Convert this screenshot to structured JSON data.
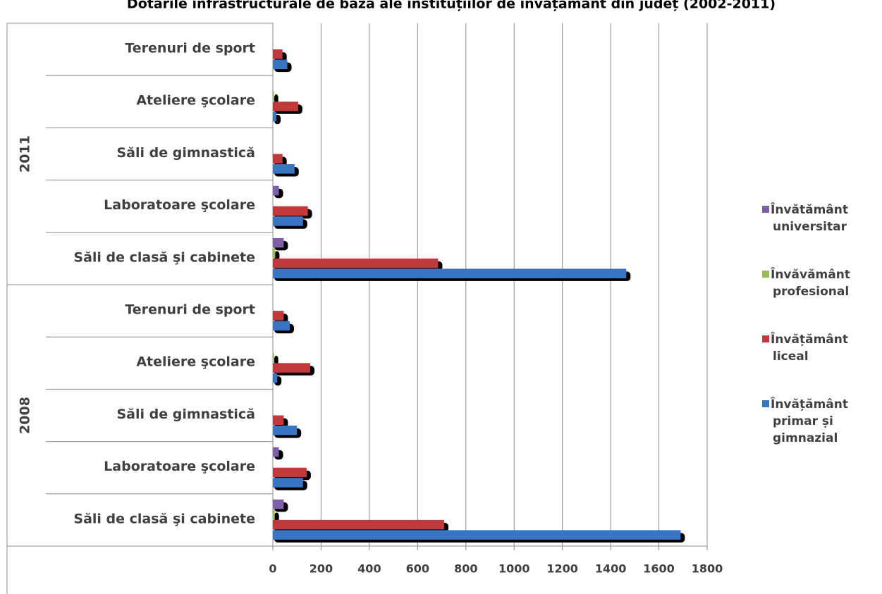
{
  "chart_data": {
    "type": "bar",
    "orientation": "horizontal",
    "title": "Dotarile infrastructurale de bază ale instituțiilor de învățământ din județ (2002-2011)",
    "groups": [
      {
        "name": "2008",
        "categories": [
          "Săli de clasă şi cabinete",
          "Laboratoare şcolare",
          "Săli de gimnastică",
          "Ateliere şcolare",
          "Terenuri de sport"
        ]
      },
      {
        "name": "2011",
        "categories": [
          "Săli de clasă şi cabinete",
          "Laboratoare şcolare",
          "Săli de gimnastică",
          "Ateliere şcolare",
          "Terenuri de sport"
        ]
      }
    ],
    "series": [
      {
        "name": "Învătământ universitar",
        "color": "#7f5fa8",
        "values": [
          [
            45,
            25,
            0,
            0,
            0
          ],
          [
            45,
            25,
            0,
            0,
            0
          ]
        ]
      },
      {
        "name": "Învăvământ profesional",
        "color": "#9bbb59",
        "values": [
          [
            8,
            0,
            0,
            5,
            0
          ],
          [
            10,
            0,
            0,
            5,
            0
          ]
        ]
      },
      {
        "name": "Învățământ liceal",
        "color": "#c0393b",
        "values": [
          [
            710,
            140,
            45,
            155,
            45
          ],
          [
            685,
            145,
            40,
            105,
            40
          ]
        ]
      },
      {
        "name": "Învățământ primar și gimnazial",
        "color": "#3a75c4",
        "values": [
          [
            1690,
            125,
            100,
            18,
            70
          ],
          [
            1465,
            125,
            90,
            15,
            60
          ]
        ]
      }
    ],
    "xlim": [
      0,
      1800
    ],
    "xticks": [
      0,
      200,
      400,
      600,
      800,
      1000,
      1200,
      1400,
      1600,
      1800
    ],
    "grid": true,
    "legend": "right"
  }
}
